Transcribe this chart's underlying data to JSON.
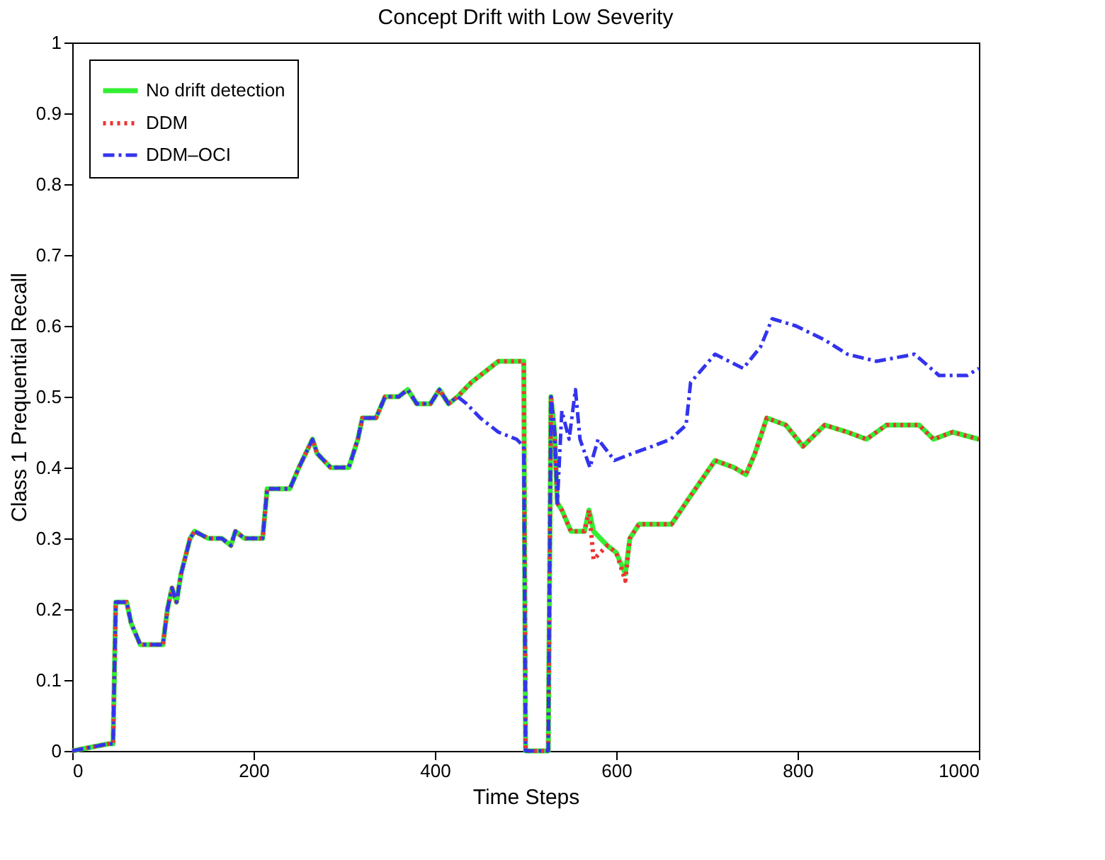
{
  "chart_data": {
    "type": "line",
    "title": "Concept Drift with Low Severity",
    "xlabel": "Time Steps",
    "ylabel": "Class 1 Prequential Recall",
    "xlim": [
      0,
      1000
    ],
    "xticks": [
      0,
      200,
      400,
      600,
      800,
      1000
    ],
    "ylim": [
      0,
      1
    ],
    "yticks": [
      0,
      0.1,
      0.2,
      0.3,
      0.4,
      0.5,
      0.6,
      0.7,
      0.8,
      0.9,
      1
    ],
    "grid": false,
    "legend": "top left",
    "marker": "none",
    "series": [
      {
        "name": "No drift detection",
        "color": "#33ee33",
        "line_style": "solid",
        "x": [
          0,
          40,
          45,
          48,
          60,
          65,
          75,
          100,
          105,
          110,
          115,
          120,
          130,
          135,
          150,
          165,
          175,
          180,
          190,
          210,
          215,
          240,
          250,
          265,
          270,
          285,
          305,
          315,
          320,
          335,
          345,
          360,
          370,
          380,
          395,
          405,
          415,
          425,
          440,
          450,
          470,
          498,
          500,
          525,
          528,
          532,
          535,
          540,
          550,
          565,
          570,
          575,
          590,
          600,
          610,
          615,
          625,
          650,
          661,
          682,
          709,
          730,
          743,
          753,
          766,
          787,
          806,
          830,
          855,
          876,
          898,
          934,
          950,
          971,
          1000
        ],
        "values": [
          0,
          0.01,
          0.01,
          0.21,
          0.21,
          0.18,
          0.15,
          0.15,
          0.2,
          0.23,
          0.21,
          0.25,
          0.3,
          0.31,
          0.3,
          0.3,
          0.29,
          0.31,
          0.3,
          0.3,
          0.37,
          0.37,
          0.4,
          0.44,
          0.42,
          0.4,
          0.4,
          0.44,
          0.47,
          0.47,
          0.5,
          0.5,
          0.51,
          0.49,
          0.49,
          0.51,
          0.49,
          0.5,
          0.52,
          0.53,
          0.55,
          0.55,
          0,
          0,
          0.5,
          0.45,
          0.35,
          0.34,
          0.31,
          0.31,
          0.34,
          0.31,
          0.29,
          0.28,
          0.25,
          0.3,
          0.32,
          0.32,
          0.32,
          0.36,
          0.41,
          0.4,
          0.39,
          0.42,
          0.47,
          0.46,
          0.43,
          0.46,
          0.45,
          0.44,
          0.46,
          0.46,
          0.44,
          0.45,
          0.44
        ]
      },
      {
        "name": "DDM",
        "color": "#ee3333",
        "line_style": "dotted",
        "x": [
          0,
          40,
          45,
          48,
          60,
          65,
          75,
          100,
          105,
          110,
          115,
          120,
          130,
          135,
          150,
          165,
          175,
          180,
          190,
          210,
          215,
          240,
          250,
          265,
          270,
          285,
          305,
          315,
          320,
          335,
          345,
          360,
          370,
          380,
          395,
          405,
          415,
          425,
          440,
          450,
          470,
          498,
          500,
          525,
          528,
          532,
          535,
          540,
          550,
          565,
          570,
          575,
          590,
          600,
          610,
          615,
          625,
          650,
          661,
          682,
          709,
          730,
          743,
          753,
          766,
          787,
          806,
          830,
          855,
          876,
          898,
          934,
          950,
          971,
          1000
        ],
        "values": [
          0,
          0.01,
          0.01,
          0.21,
          0.21,
          0.18,
          0.15,
          0.15,
          0.2,
          0.23,
          0.21,
          0.25,
          0.3,
          0.31,
          0.3,
          0.3,
          0.29,
          0.31,
          0.3,
          0.3,
          0.37,
          0.37,
          0.4,
          0.44,
          0.42,
          0.4,
          0.4,
          0.44,
          0.47,
          0.47,
          0.5,
          0.5,
          0.51,
          0.49,
          0.49,
          0.51,
          0.49,
          0.5,
          0.52,
          0.53,
          0.55,
          0.55,
          0,
          0,
          0.5,
          0.45,
          0.35,
          0.34,
          0.31,
          0.31,
          0.34,
          0.27,
          0.29,
          0.28,
          0.24,
          0.3,
          0.32,
          0.32,
          0.32,
          0.36,
          0.41,
          0.4,
          0.39,
          0.42,
          0.47,
          0.46,
          0.43,
          0.46,
          0.45,
          0.44,
          0.46,
          0.46,
          0.44,
          0.45,
          0.44
        ]
      },
      {
        "name": "DDM–OCI",
        "color": "#3333ee",
        "line_style": "dashdot",
        "x": [
          0,
          40,
          45,
          48,
          60,
          65,
          75,
          100,
          105,
          110,
          115,
          120,
          130,
          135,
          150,
          165,
          175,
          180,
          190,
          210,
          215,
          240,
          250,
          265,
          270,
          285,
          305,
          315,
          320,
          335,
          345,
          360,
          370,
          380,
          395,
          405,
          415,
          425,
          435,
          450,
          470,
          490,
          498,
          500,
          525,
          528,
          532,
          535,
          540,
          548,
          555,
          560,
          571,
          580,
          598,
          618,
          640,
          660,
          677,
          682,
          709,
          740,
          759,
          772,
          798,
          830,
          855,
          887,
          929,
          956,
          987,
          1000
        ],
        "values": [
          0,
          0.01,
          0.01,
          0.21,
          0.21,
          0.18,
          0.15,
          0.15,
          0.2,
          0.23,
          0.21,
          0.25,
          0.3,
          0.31,
          0.3,
          0.3,
          0.29,
          0.31,
          0.3,
          0.3,
          0.37,
          0.37,
          0.4,
          0.44,
          0.42,
          0.4,
          0.4,
          0.44,
          0.47,
          0.47,
          0.5,
          0.5,
          0.51,
          0.49,
          0.49,
          0.51,
          0.49,
          0.5,
          0.49,
          0.47,
          0.45,
          0.44,
          0.43,
          0,
          0,
          0.5,
          0.45,
          0.35,
          0.48,
          0.44,
          0.51,
          0.44,
          0.4,
          0.44,
          0.41,
          0.42,
          0.43,
          0.44,
          0.46,
          0.52,
          0.56,
          0.54,
          0.57,
          0.61,
          0.6,
          0.58,
          0.56,
          0.55,
          0.56,
          0.53,
          0.53,
          0.54
        ]
      }
    ]
  }
}
